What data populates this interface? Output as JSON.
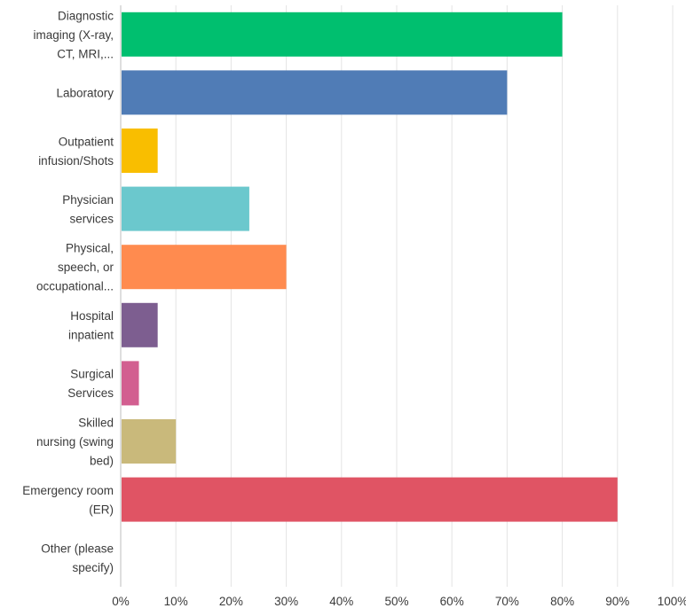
{
  "chart_data": {
    "type": "bar",
    "orientation": "horizontal",
    "categories": [
      [
        "Diagnostic",
        "imaging (X-ray,",
        "CT, MRI,..."
      ],
      [
        "Laboratory"
      ],
      [
        "Outpatient",
        "infusion/Shots"
      ],
      [
        "Physician",
        "services"
      ],
      [
        "Physical,",
        "speech, or",
        "occupational..."
      ],
      [
        "Hospital",
        "inpatient"
      ],
      [
        "Surgical",
        "Services"
      ],
      [
        "Skilled",
        "nursing (swing",
        "bed)"
      ],
      [
        "Emergency room",
        "(ER)"
      ],
      [
        "Other (please",
        "specify)"
      ]
    ],
    "values": [
      80,
      70,
      6.7,
      23.3,
      30,
      6.7,
      3.3,
      10,
      90,
      0
    ],
    "colors": [
      "#00bf6f",
      "#507cb6",
      "#f9be00",
      "#6bc8cd",
      "#ff8b4f",
      "#7d5e90",
      "#d25f90",
      "#c9b97b",
      "#e05464",
      "#a6a6a6"
    ],
    "xlim": [
      0,
      100
    ],
    "ticks": [
      "0%",
      "10%",
      "20%",
      "30%",
      "40%",
      "50%",
      "60%",
      "70%",
      "80%",
      "90%",
      "100%"
    ],
    "tick_values": [
      0,
      10,
      20,
      30,
      40,
      50,
      60,
      70,
      80,
      90,
      100
    ],
    "grid": true,
    "legend": "none",
    "title": "",
    "xlabel": "",
    "ylabel": ""
  }
}
